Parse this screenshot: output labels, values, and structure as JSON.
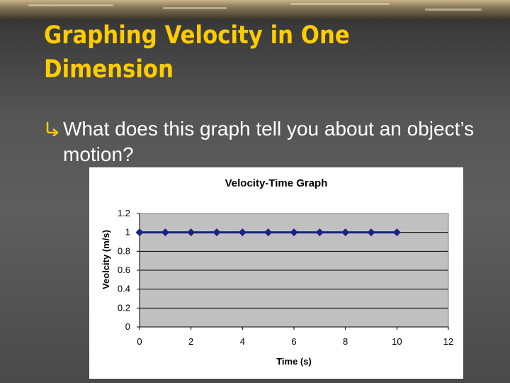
{
  "slide": {
    "title": "Graphing Velocity in One Dimension",
    "bullet_icon": "arrow-bullet-icon",
    "bullet_text": "What does this graph tell you about an object’s motion?",
    "colors": {
      "title": "#ffcc00",
      "text": "#ffffff",
      "background": "#4f4f4f"
    }
  },
  "chart_data": {
    "type": "line",
    "title": "Velocity-Time Graph",
    "xlabel": "Time (s)",
    "ylabel": "Veolcity (m/s)",
    "xlim": [
      0,
      12
    ],
    "ylim": [
      0,
      1.2
    ],
    "x_ticks": [
      0,
      2,
      4,
      6,
      8,
      10,
      12
    ],
    "y_ticks": [
      0,
      0.2,
      0.4,
      0.6,
      0.8,
      1,
      1.2
    ],
    "grid": true,
    "legend": "none",
    "series": [
      {
        "x": [
          0,
          1,
          2,
          3,
          4,
          5,
          6,
          7,
          8,
          9,
          10
        ],
        "y": [
          1,
          1,
          1,
          1,
          1,
          1,
          1,
          1,
          1,
          1,
          1
        ],
        "color": "#1a237e",
        "marker": "diamond"
      }
    ],
    "plot_area_color": "#c0c0c0"
  }
}
